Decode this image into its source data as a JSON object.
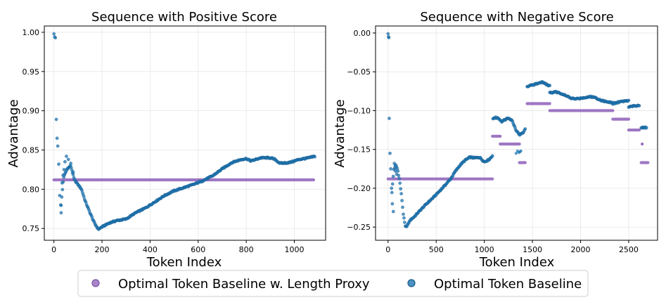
{
  "colors": {
    "length_proxy": "#9467bd",
    "baseline": "#1f77b4"
  },
  "legend": {
    "items": [
      {
        "label": "Optimal Token Baseline w. Length Proxy",
        "color": "#9467bd"
      },
      {
        "label": "Optimal Token Baseline",
        "color": "#1f77b4"
      }
    ]
  },
  "chart_data": [
    {
      "type": "scatter",
      "title": "Sequence with Positive Score",
      "xlabel": "Token Index",
      "ylabel": "Advantage",
      "xlim": [
        -40,
        1130
      ],
      "ylim": [
        0.735,
        1.008
      ],
      "xticks": [
        0,
        200,
        400,
        600,
        800,
        1000
      ],
      "yticks": [
        0.75,
        0.8,
        0.85,
        0.9,
        0.95,
        1.0
      ],
      "ytick_labels": [
        "0.75",
        "0.80",
        "0.85",
        "0.90",
        "0.95",
        "1.00"
      ],
      "grid": true,
      "series": [
        {
          "name": "Optimal Token Baseline w. Length Proxy",
          "kind": "constant",
          "segments": [
            {
              "x0": 0,
              "x1": 1080,
              "y": 0.812
            }
          ]
        },
        {
          "name": "Optimal Token Baseline",
          "kind": "polyline",
          "x_max": 1085,
          "outliers": [
            [
              0,
              0.998
            ],
            [
              3,
              0.994
            ],
            [
              6,
              0.993
            ],
            [
              10,
              0.889
            ],
            [
              13,
              0.865
            ],
            [
              16,
              0.855
            ],
            [
              20,
              0.832
            ],
            [
              24,
              0.792
            ],
            [
              28,
              0.78
            ],
            [
              30,
              0.77
            ],
            [
              34,
              0.808
            ],
            [
              38,
              0.818
            ],
            [
              42,
              0.825
            ],
            [
              46,
              0.835
            ],
            [
              52,
              0.842
            ],
            [
              60,
              0.838
            ],
            [
              70,
              0.833
            ],
            [
              80,
              0.822
            ]
          ],
          "points": [
            [
              30,
              0.78
            ],
            [
              40,
              0.815
            ],
            [
              55,
              0.826
            ],
            [
              70,
              0.83
            ],
            [
              85,
              0.812
            ],
            [
              100,
              0.806
            ],
            [
              115,
              0.8
            ],
            [
              130,
              0.785
            ],
            [
              150,
              0.77
            ],
            [
              170,
              0.756
            ],
            [
              185,
              0.749
            ],
            [
              200,
              0.752
            ],
            [
              230,
              0.757
            ],
            [
              260,
              0.76
            ],
            [
              300,
              0.762
            ],
            [
              340,
              0.77
            ],
            [
              380,
              0.776
            ],
            [
              420,
              0.784
            ],
            [
              460,
              0.792
            ],
            [
              500,
              0.798
            ],
            [
              540,
              0.802
            ],
            [
              580,
              0.806
            ],
            [
              620,
              0.811
            ],
            [
              660,
              0.817
            ],
            [
              700,
              0.826
            ],
            [
              740,
              0.834
            ],
            [
              780,
              0.838
            ],
            [
              800,
              0.839
            ],
            [
              820,
              0.836
            ],
            [
              840,
              0.838
            ],
            [
              860,
              0.84
            ],
            [
              900,
              0.84
            ],
            [
              920,
              0.838
            ],
            [
              940,
              0.833
            ],
            [
              980,
              0.834
            ],
            [
              1020,
              0.838
            ],
            [
              1060,
              0.84
            ],
            [
              1085,
              0.842
            ]
          ]
        }
      ]
    },
    {
      "type": "scatter",
      "title": "Sequence with Negative Score",
      "xlabel": "Token Index",
      "ylabel": "Advantage",
      "xlim": [
        -130,
        2800
      ],
      "ylim": [
        -0.267,
        0.009
      ],
      "xticks": [
        0,
        500,
        1000,
        1500,
        2000,
        2500
      ],
      "yticks": [
        0,
        -0.05,
        -0.1,
        -0.15,
        -0.2,
        -0.25
      ],
      "ytick_labels": [
        "0.00",
        "−0.05",
        "−0.10",
        "−0.15",
        "−0.20",
        "−0.25"
      ],
      "grid": true,
      "series": [
        {
          "name": "Optimal Token Baseline w. Length Proxy",
          "kind": "constant",
          "segments": [
            {
              "x0": 0,
              "x1": 1085,
              "y": -0.188
            },
            {
              "x0": 1085,
              "x1": 1165,
              "y": -0.133
            },
            {
              "x0": 1165,
              "x1": 1365,
              "y": -0.143
            },
            {
              "x0": 1365,
              "x1": 1425,
              "y": -0.167
            },
            {
              "x0": 1445,
              "x1": 1680,
              "y": -0.091
            },
            {
              "x0": 1680,
              "x1": 2335,
              "y": -0.1
            },
            {
              "x0": 2335,
              "x1": 2500,
              "y": -0.111
            },
            {
              "x0": 2500,
              "x1": 2610,
              "y": -0.125
            },
            {
              "x0": 2630,
              "x1": 2700,
              "y": -0.167
            }
          ],
          "extra_points": [
            [
              2640,
              -0.143
            ]
          ]
        },
        {
          "name": "Optimal Token Baseline",
          "kind": "polyline",
          "x_max": 2685,
          "outliers": [
            [
              0,
              -0.001
            ],
            [
              5,
              -0.005
            ],
            [
              8,
              -0.006
            ],
            [
              12,
              -0.11
            ],
            [
              20,
              -0.155
            ],
            [
              28,
              -0.175
            ],
            [
              36,
              -0.2
            ],
            [
              45,
              -0.22
            ],
            [
              55,
              -0.23
            ],
            [
              65,
              -0.168
            ],
            [
              78,
              -0.178
            ],
            [
              90,
              -0.182
            ]
          ],
          "points": [
            [
              40,
              -0.205
            ],
            [
              60,
              -0.176
            ],
            [
              80,
              -0.17
            ],
            [
              100,
              -0.176
            ],
            [
              120,
              -0.19
            ],
            [
              140,
              -0.21
            ],
            [
              160,
              -0.235
            ],
            [
              180,
              -0.25
            ],
            [
              200,
              -0.248
            ],
            [
              230,
              -0.241
            ],
            [
              270,
              -0.237
            ],
            [
              330,
              -0.229
            ],
            [
              400,
              -0.22
            ],
            [
              470,
              -0.212
            ],
            [
              540,
              -0.203
            ],
            [
              600,
              -0.195
            ],
            [
              650,
              -0.188
            ],
            [
              700,
              -0.178
            ],
            [
              750,
              -0.17
            ],
            [
              800,
              -0.164
            ],
            [
              850,
              -0.16
            ],
            [
              900,
              -0.161
            ],
            [
              950,
              -0.16
            ],
            [
              1000,
              -0.166
            ],
            [
              1050,
              -0.163
            ],
            [
              1085,
              -0.158
            ]
          ]
        },
        {
          "name": "Optimal Token Baseline",
          "kind": "polyline",
          "points": [
            [
              1090,
              -0.11
            ],
            [
              1120,
              -0.109
            ],
            [
              1150,
              -0.11
            ],
            [
              1180,
              -0.114
            ],
            [
              1210,
              -0.112
            ],
            [
              1250,
              -0.109
            ],
            [
              1290,
              -0.113
            ],
            [
              1330,
              -0.125
            ],
            [
              1365,
              -0.131
            ],
            [
              1400,
              -0.129
            ],
            [
              1425,
              -0.124
            ]
          ]
        },
        {
          "name": "Optimal Token Baseline",
          "kind": "scatter",
          "points": [
            [
              1330,
              -0.155
            ],
            [
              1345,
              -0.152
            ],
            [
              1360,
              -0.154
            ],
            [
              1370,
              -0.153
            ],
            [
              1380,
              -0.152
            ]
          ]
        },
        {
          "name": "Optimal Token Baseline",
          "kind": "polyline",
          "points": [
            [
              1445,
              -0.069
            ],
            [
              1500,
              -0.067
            ],
            [
              1560,
              -0.065
            ],
            [
              1600,
              -0.063
            ],
            [
              1640,
              -0.066
            ],
            [
              1680,
              -0.068
            ]
          ]
        },
        {
          "name": "Optimal Token Baseline",
          "kind": "polyline",
          "points": [
            [
              1680,
              -0.077
            ],
            [
              1750,
              -0.076
            ],
            [
              1800,
              -0.078
            ],
            [
              1850,
              -0.081
            ],
            [
              1900,
              -0.084
            ],
            [
              1950,
              -0.085
            ],
            [
              2000,
              -0.084
            ],
            [
              2050,
              -0.083
            ],
            [
              2100,
              -0.082
            ],
            [
              2150,
              -0.083
            ],
            [
              2200,
              -0.086
            ],
            [
              2250,
              -0.088
            ],
            [
              2300,
              -0.089
            ],
            [
              2335,
              -0.09
            ]
          ]
        },
        {
          "name": "Optimal Token Baseline",
          "kind": "polyline",
          "points": [
            [
              2335,
              -0.091
            ],
            [
              2400,
              -0.089
            ],
            [
              2450,
              -0.088
            ],
            [
              2500,
              -0.087
            ]
          ]
        },
        {
          "name": "Optimal Token Baseline",
          "kind": "polyline",
          "points": [
            [
              2500,
              -0.095
            ],
            [
              2550,
              -0.094
            ],
            [
              2610,
              -0.093
            ]
          ]
        },
        {
          "name": "Optimal Token Baseline",
          "kind": "polyline",
          "points": [
            [
              2630,
              -0.122
            ],
            [
              2685,
              -0.122
            ]
          ]
        }
      ]
    }
  ]
}
